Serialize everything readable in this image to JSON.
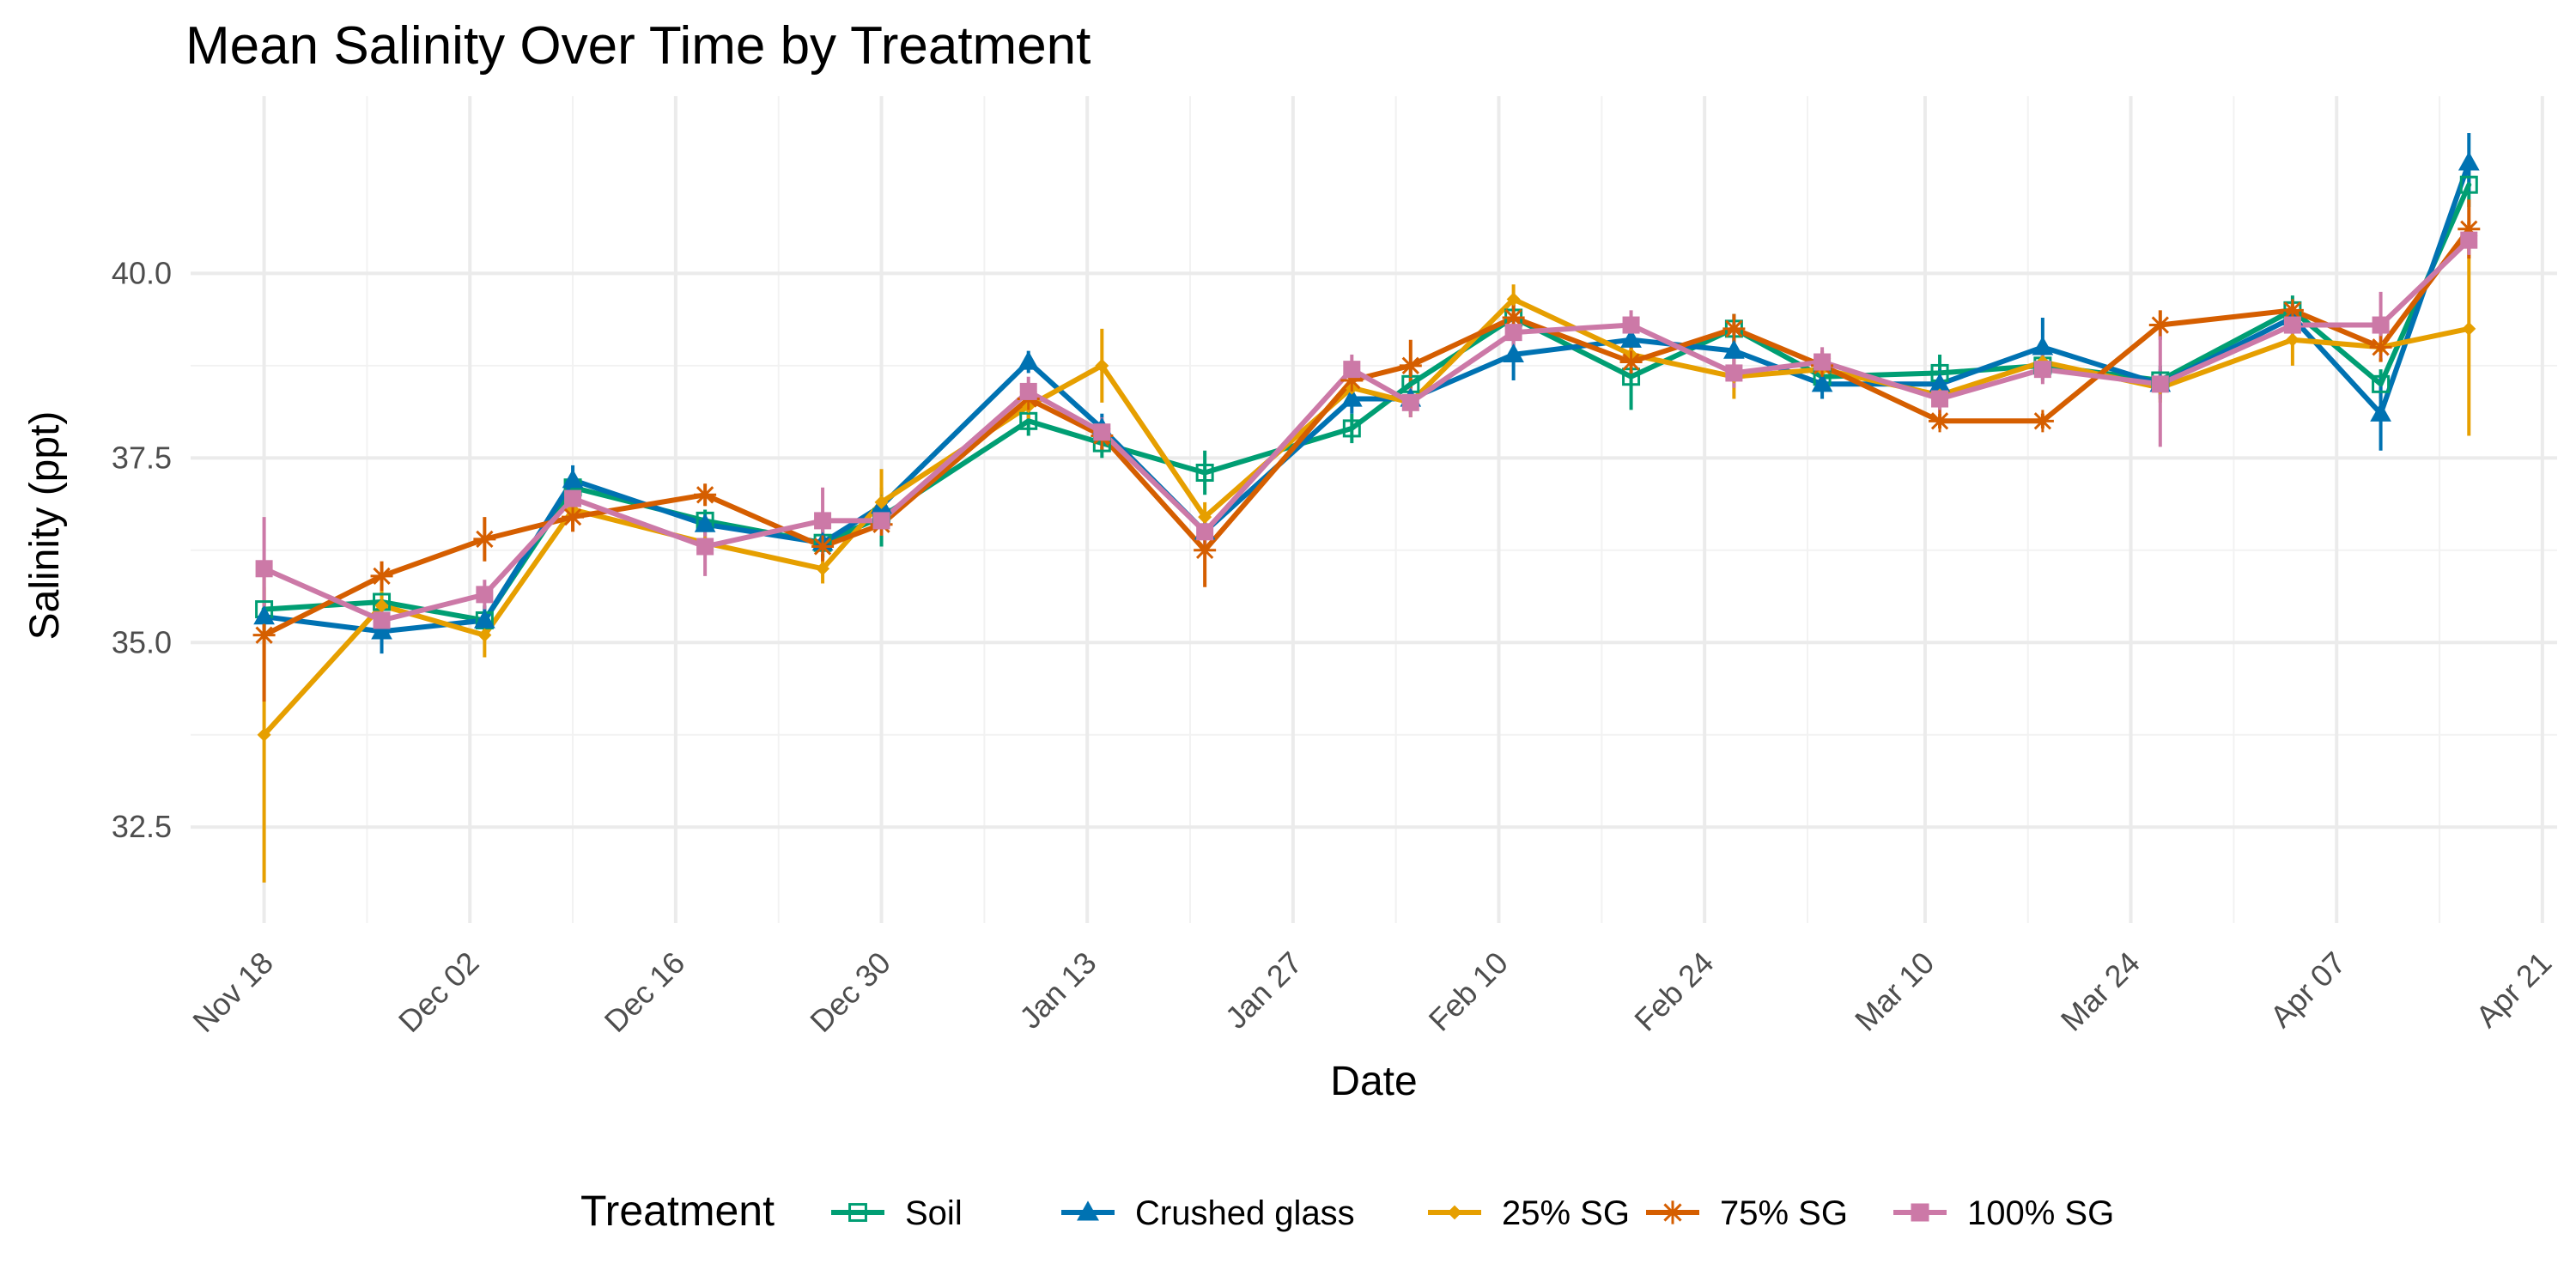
{
  "chart_data": {
    "type": "line",
    "title": "Mean Salinity Over Time by Treatment",
    "xlabel": "Date",
    "ylabel": "Salinity (ppt)",
    "x_axis_type": "date",
    "xlim": [
      "2023-11-13",
      "2024-04-22"
    ],
    "ylim": [
      31.2,
      42.4
    ],
    "y_ticks": [
      32.5,
      35.0,
      37.5,
      40.0
    ],
    "y_tick_labels": [
      "32.5",
      "35.0",
      "37.5",
      "40.0"
    ],
    "x_ticks": [
      "2023-11-18",
      "2023-12-02",
      "2023-12-16",
      "2023-12-30",
      "2024-01-13",
      "2024-01-27",
      "2024-02-10",
      "2024-02-24",
      "2024-03-10",
      "2024-03-24",
      "2024-04-07",
      "2024-04-21"
    ],
    "x_tick_labels": [
      "Nov 18",
      "Dec 02",
      "Dec 16",
      "Dec 30",
      "Jan 13",
      "Jan 27",
      "Feb 10",
      "Feb 24",
      "Mar 10",
      "Mar 24",
      "Apr 07",
      "Apr 21"
    ],
    "grid": true,
    "legend_title": "Treatment",
    "legend_position": "bottom",
    "x": [
      "2023-11-18",
      "2023-11-26",
      "2023-12-03",
      "2023-12-09",
      "2023-12-18",
      "2023-12-26",
      "2023-12-30",
      "2024-01-09",
      "2024-01-14",
      "2024-01-21",
      "2024-01-31",
      "2024-02-04",
      "2024-02-11",
      "2024-02-19",
      "2024-02-26",
      "2024-03-03",
      "2024-03-11",
      "2024-03-18",
      "2024-03-26",
      "2024-04-04",
      "2024-04-10",
      "2024-04-16"
    ],
    "series": [
      {
        "name": "Soil",
        "color": "#009E73",
        "marker": "square-open",
        "values": [
          35.45,
          35.55,
          35.3,
          37.1,
          36.65,
          36.35,
          36.7,
          38.0,
          37.7,
          37.3,
          37.9,
          38.5,
          39.4,
          38.6,
          39.25,
          38.6,
          38.65,
          38.75,
          38.55,
          39.5,
          38.5,
          41.2
        ],
        "errors": [
          0.1,
          0.1,
          0.2,
          0.2,
          0.15,
          0.2,
          0.4,
          0.2,
          0.2,
          0.3,
          0.2,
          0.3,
          0.3,
          0.45,
          0.2,
          0.2,
          0.25,
          0.2,
          0.2,
          0.2,
          0.2,
          0.3
        ]
      },
      {
        "name": "Crushed glass",
        "color": "#0072B2",
        "marker": "triangle",
        "values": [
          35.35,
          35.15,
          35.3,
          37.2,
          36.6,
          36.35,
          36.85,
          38.8,
          37.9,
          36.5,
          38.3,
          38.3,
          38.9,
          39.1,
          38.95,
          38.5,
          38.5,
          39.0,
          38.5,
          39.4,
          38.1,
          41.5
        ],
        "errors": [
          0.2,
          0.3,
          0.2,
          0.2,
          0.1,
          0.2,
          0.2,
          0.15,
          0.2,
          0.2,
          0.2,
          0.2,
          0.35,
          0.2,
          0.2,
          0.2,
          0.2,
          0.4,
          0.2,
          0.2,
          0.5,
          0.4
        ]
      },
      {
        "name": "25% SG",
        "color": "#E69F00",
        "marker": "diamond",
        "values": [
          33.75,
          35.5,
          35.1,
          36.8,
          36.35,
          36.0,
          36.9,
          38.2,
          38.75,
          36.7,
          38.45,
          38.25,
          39.65,
          38.9,
          38.6,
          38.7,
          38.35,
          38.8,
          38.45,
          39.1,
          39.0,
          39.25
        ],
        "errors": [
          2.0,
          0.2,
          0.3,
          0.2,
          0.15,
          0.2,
          0.45,
          0.2,
          0.5,
          0.2,
          0.2,
          0.2,
          0.2,
          0.2,
          0.3,
          0.2,
          0.2,
          0.2,
          0.2,
          0.35,
          0.2,
          1.45
        ]
      },
      {
        "name": "75% SG",
        "color": "#D55E00",
        "marker": "star",
        "values": [
          35.1,
          35.9,
          36.4,
          36.7,
          37.0,
          36.3,
          36.6,
          38.3,
          37.8,
          36.25,
          38.55,
          38.75,
          39.4,
          38.8,
          39.25,
          38.75,
          38.0,
          38.0,
          39.3,
          39.5,
          39.0,
          40.6
        ],
        "errors": [
          0.9,
          0.2,
          0.3,
          0.2,
          0.15,
          0.2,
          0.15,
          0.2,
          0.2,
          0.5,
          0.2,
          0.35,
          0.2,
          0.2,
          0.2,
          0.2,
          0.1,
          0.1,
          0.2,
          0.1,
          0.2,
          0.4
        ]
      },
      {
        "name": "100% SG",
        "color": "#CC79A7",
        "marker": "square",
        "values": [
          36.0,
          35.3,
          35.65,
          36.95,
          36.3,
          36.65,
          36.65,
          38.4,
          37.85,
          36.5,
          38.7,
          38.25,
          39.2,
          39.3,
          38.65,
          38.8,
          38.3,
          38.7,
          38.5,
          39.3,
          39.3,
          40.45
        ],
        "errors": [
          0.7,
          0.2,
          0.2,
          0.2,
          0.4,
          0.45,
          0.2,
          0.2,
          0.2,
          0.2,
          0.2,
          0.2,
          0.2,
          0.2,
          0.2,
          0.2,
          0.2,
          0.2,
          0.85,
          0.2,
          0.45,
          0.2
        ]
      }
    ]
  }
}
